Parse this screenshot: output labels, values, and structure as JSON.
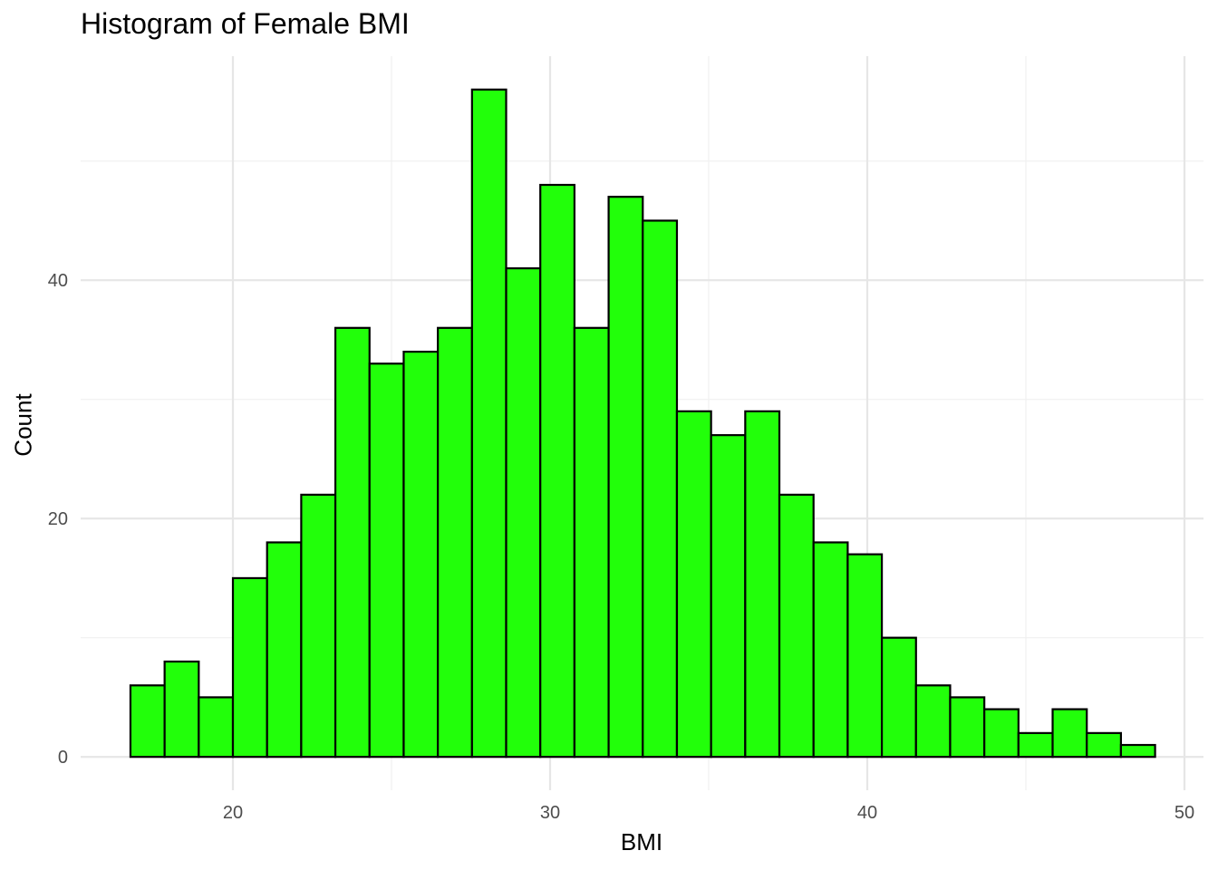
{
  "chart_data": {
    "type": "bar",
    "title": "Histogram of Female BMI",
    "xlabel": "BMI",
    "ylabel": "Count",
    "bin_width": 1.0768,
    "x_start": 16.77,
    "values": [
      6,
      8,
      5,
      15,
      18,
      22,
      36,
      33,
      34,
      36,
      56,
      41,
      48,
      36,
      47,
      45,
      29,
      27,
      29,
      22,
      18,
      17,
      10,
      6,
      5,
      4,
      2,
      4,
      2,
      1
    ],
    "xlim": [
      15.2,
      50.6
    ],
    "ylim": [
      -2.8,
      58.8
    ],
    "x_ticks": [
      20,
      30,
      40,
      50
    ],
    "y_ticks": [
      0,
      20,
      40
    ],
    "grid": true,
    "legend": "none",
    "colors": {
      "bar_fill": "#22ff0a",
      "bar_stroke": "#000000",
      "grid_major": "#e6e6e6",
      "grid_minor": "#f0f0f0",
      "tick_text": "#4d4d4d"
    }
  }
}
